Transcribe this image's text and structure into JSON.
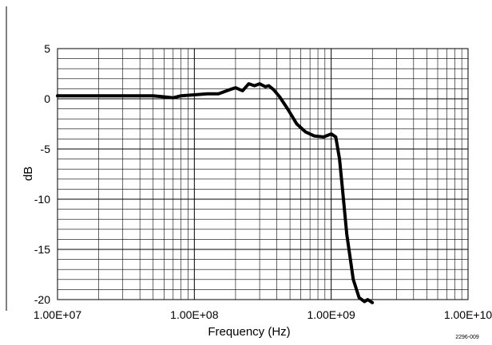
{
  "chart_data": {
    "type": "line",
    "xlabel": "Frequency (Hz)",
    "ylabel": "dB",
    "xscale": "log",
    "xlim": [
      10000000,
      10000000000
    ],
    "ylim": [
      -20,
      5
    ],
    "x_tick_labels": [
      "1.00E+07",
      "1.00E+08",
      "1.00E+09",
      "1.00E+10"
    ],
    "y_tick_labels": [
      "5",
      "0",
      "-5",
      "-10",
      "-15",
      "-20"
    ],
    "y_ticks": [
      5,
      0,
      -5,
      -10,
      -15,
      -20
    ],
    "grid": true,
    "line_color": "#000000",
    "series": [
      {
        "x": [
          10000000,
          15000000,
          30000000,
          50000000,
          60000000,
          70000000,
          80000000,
          100000000,
          125000000,
          150000000,
          180000000,
          200000000,
          225000000,
          250000000,
          275000000,
          300000000,
          330000000,
          350000000,
          380000000,
          420000000,
          480000000,
          560000000,
          650000000,
          750000000,
          880000000,
          1000000000,
          1080000000,
          1150000000,
          1200000000,
          1300000000,
          1450000000,
          1600000000,
          1750000000,
          1850000000,
          2000000000
        ],
        "y": [
          0.3,
          0.3,
          0.3,
          0.3,
          0.2,
          0.1,
          0.3,
          0.4,
          0.5,
          0.5,
          0.9,
          1.1,
          0.8,
          1.5,
          1.3,
          1.5,
          1.2,
          1.3,
          0.9,
          0.2,
          -1.0,
          -2.5,
          -3.3,
          -3.7,
          -3.8,
          -3.5,
          -3.8,
          -6.0,
          -8.5,
          -13.5,
          -18.0,
          -19.8,
          -20.2,
          -20.0,
          -20.3
        ]
      }
    ],
    "figure_id": "2296-009"
  }
}
